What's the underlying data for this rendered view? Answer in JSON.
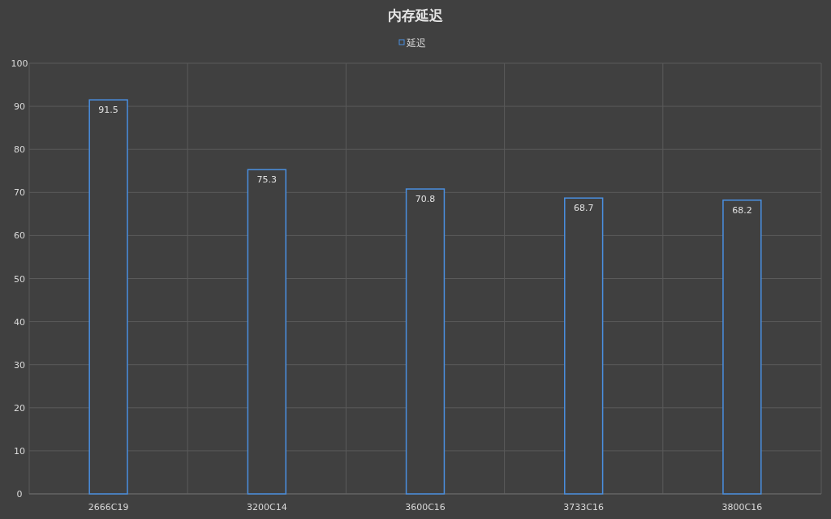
{
  "chart_data": {
    "type": "bar",
    "title": "内存延迟",
    "categories": [
      "2666C19",
      "3200C14",
      "3600C16",
      "3733C16",
      "3800C16"
    ],
    "series": [
      {
        "name": "延迟",
        "color": "#4a8fe0",
        "values": [
          91.5,
          75.3,
          70.8,
          68.7,
          68.2
        ]
      }
    ],
    "ylim": [
      0,
      100
    ],
    "yticks": [
      0,
      10,
      20,
      30,
      40,
      50,
      60,
      70,
      80,
      90,
      100
    ],
    "grid": true,
    "legend": "top",
    "data_labels": true
  }
}
